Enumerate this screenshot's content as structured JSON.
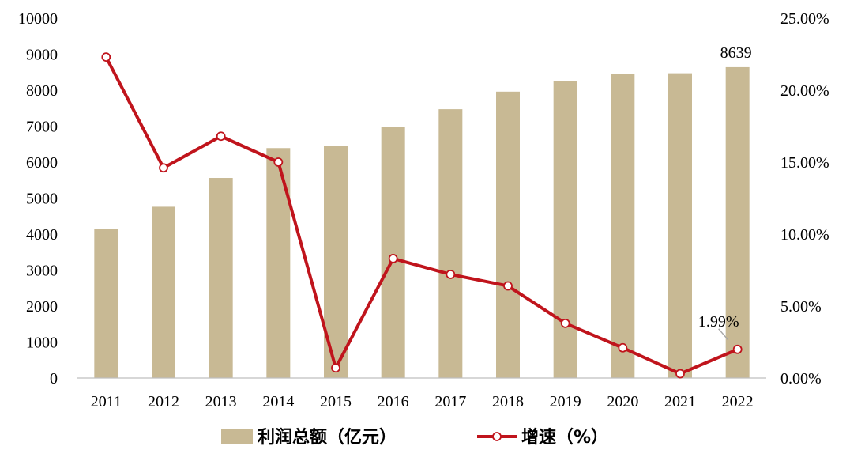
{
  "chart_data": {
    "type": "bar",
    "categories": [
      "2011",
      "2012",
      "2013",
      "2014",
      "2015",
      "2016",
      "2017",
      "2018",
      "2019",
      "2020",
      "2021",
      "2022"
    ],
    "series": [
      {
        "name": "利润总额（亿元）",
        "type": "bar",
        "axis": "left",
        "color": "#c8b994",
        "values": [
          4150,
          4760,
          5560,
          6390,
          6440,
          6970,
          7470,
          7960,
          8260,
          8440,
          8470,
          8639
        ]
      },
      {
        "name": "增速（%）",
        "type": "line",
        "axis": "right",
        "color": "#c0141c",
        "values": [
          22.3,
          14.6,
          16.8,
          15.0,
          0.7,
          8.3,
          7.2,
          6.4,
          3.8,
          2.1,
          0.3,
          1.99
        ]
      }
    ],
    "left_axis": {
      "min": 0,
      "max": 10000,
      "ticks": [
        "0",
        "1000",
        "2000",
        "3000",
        "4000",
        "5000",
        "6000",
        "7000",
        "8000",
        "9000",
        "10000"
      ]
    },
    "right_axis": {
      "min": 0,
      "max": 25,
      "ticks": [
        "0.00%",
        "5.00%",
        "10.00%",
        "15.00%",
        "20.00%",
        "25.00%"
      ]
    },
    "annotations": [
      {
        "text": "8639",
        "series": 0,
        "index": 11
      },
      {
        "text": "1.99%",
        "series": 1,
        "index": 11
      }
    ],
    "legend": {
      "position": "bottom"
    },
    "grid": false
  }
}
